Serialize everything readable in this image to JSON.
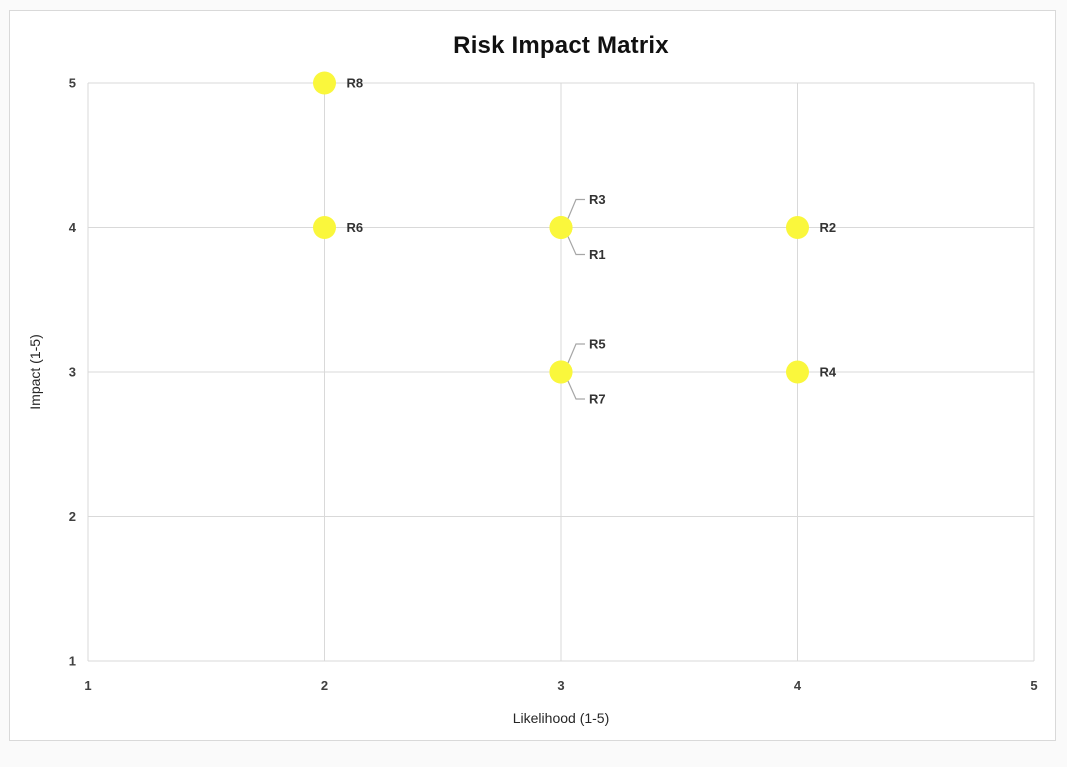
{
  "page": {
    "background": "#fafafa",
    "card_background": "#ffffff",
    "card_border": "#d9d9d9"
  },
  "chart_data": {
    "type": "scatter",
    "title": "Risk Impact Matrix",
    "xlabel": "Likelihood (1-5)",
    "ylabel": "Impact (1-5)",
    "xlim": [
      1,
      5
    ],
    "ylim": [
      1,
      5
    ],
    "xticks": [
      1,
      2,
      3,
      4,
      5
    ],
    "yticks": [
      1,
      2,
      3,
      4,
      5
    ],
    "grid": true,
    "legend": "none",
    "marker_color": "#faf73c",
    "gridline_color": "#d9d9d9",
    "leader_color": "#a6a6a6",
    "points": [
      {
        "label": "R1",
        "x": 3,
        "y": 4,
        "label_placement": "leader-down"
      },
      {
        "label": "R2",
        "x": 4,
        "y": 4,
        "label_placement": "right"
      },
      {
        "label": "R3",
        "x": 3,
        "y": 4,
        "label_placement": "leader-up"
      },
      {
        "label": "R4",
        "x": 4,
        "y": 3,
        "label_placement": "right"
      },
      {
        "label": "R5",
        "x": 3,
        "y": 3,
        "label_placement": "leader-up"
      },
      {
        "label": "R6",
        "x": 2,
        "y": 4,
        "label_placement": "right"
      },
      {
        "label": "R7",
        "x": 3,
        "y": 3,
        "label_placement": "leader-down"
      },
      {
        "label": "R8",
        "x": 2,
        "y": 5,
        "label_placement": "right"
      }
    ]
  }
}
